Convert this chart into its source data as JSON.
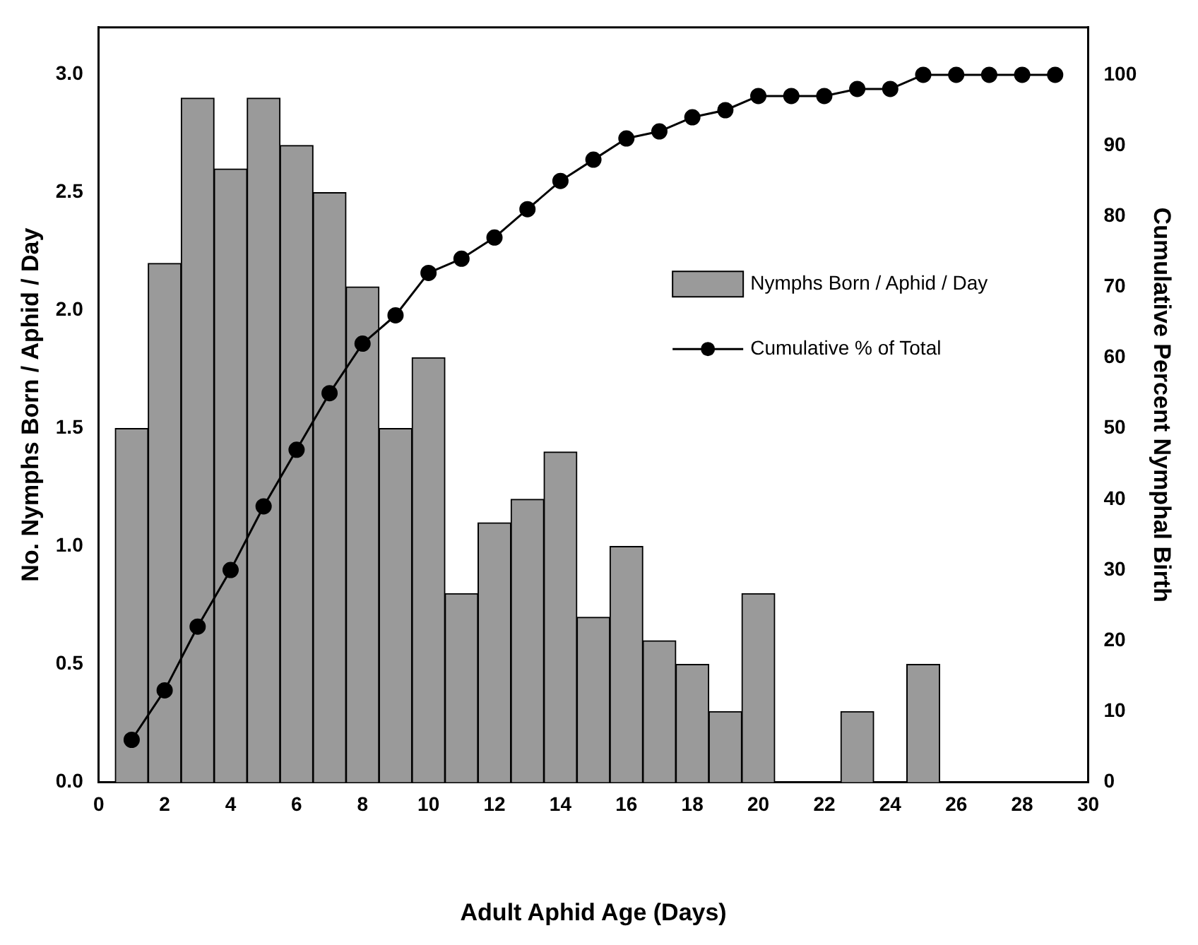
{
  "chart_data": {
    "type": "bar",
    "xlabel": "Adult Aphid Age (Days)",
    "ylabel": "No. Nymphs Born / Aphid / Day",
    "y2label": "Cumulative Percent Nymphal Birth",
    "x": [
      1,
      2,
      3,
      4,
      5,
      6,
      7,
      8,
      9,
      10,
      11,
      12,
      13,
      14,
      15,
      16,
      17,
      18,
      19,
      20,
      21,
      22,
      23,
      24,
      25,
      26,
      27,
      28,
      29
    ],
    "series": [
      {
        "name": "Nymphs Born / Aphid / Day",
        "color": "#9a9a9a",
        "values": [
          1.5,
          2.2,
          2.9,
          2.6,
          2.9,
          2.7,
          2.5,
          2.1,
          1.5,
          1.8,
          0.8,
          1.1,
          1.2,
          1.4,
          0.7,
          1.0,
          0.6,
          0.5,
          0.3,
          0.8,
          0,
          0,
          0.3,
          0,
          0.5,
          0,
          0,
          0,
          0
        ]
      },
      {
        "name": "Cumulative % of Total",
        "type": "line",
        "axis": "y2",
        "color": "#000000",
        "marker": "circle",
        "values": [
          6,
          13,
          22,
          30,
          39,
          47,
          55,
          62,
          66,
          72,
          74,
          77,
          81,
          85,
          88,
          91,
          92,
          94,
          95,
          97,
          97,
          97,
          98,
          98,
          100,
          100,
          100,
          100,
          100
        ]
      }
    ],
    "xlim": [
      0,
      30
    ],
    "xticks": [
      0,
      2,
      4,
      6,
      8,
      10,
      12,
      14,
      16,
      18,
      20,
      22,
      24,
      26,
      28,
      30
    ],
    "ylim": [
      0,
      3.2
    ],
    "yticks": [
      {
        "value": 0,
        "label": "0.0"
      },
      0.5,
      {
        "value": 1,
        "label": "1.0"
      },
      1.5,
      {
        "value": 2,
        "label": "2.0"
      },
      2.5,
      {
        "value": 3,
        "label": "3.0"
      }
    ],
    "y2lim": [
      0,
      106.7
    ],
    "y2ticks": [
      0,
      10,
      20,
      30,
      40,
      50,
      60,
      70,
      80,
      90,
      100
    ],
    "grid": false,
    "legend": "right"
  }
}
